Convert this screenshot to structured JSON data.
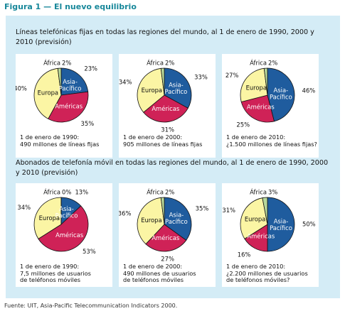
{
  "figure_title": "Figura 1 — El nuevo equilibrio",
  "sections": [
    "Líneas telefónicas fijas en todas las regiones del mundo, al 1 de enero de 1990, 2000 y 2010 (previsión)",
    "Abonados de telefonía móvil en todas las regiones del mundo, al 1 de enero de 1990, 2000 y 2010 (previsión)"
  ],
  "source": "Fuente: UIT, Asia-Pacific Telecommunication Indicators 2000.",
  "chart_data": [
    {
      "type": "pie",
      "categories": [
        "Asia-Pacífico",
        "Américas",
        "Europa",
        "África"
      ],
      "values": [
        23,
        35,
        40,
        2
      ],
      "value_labels": [
        "23%",
        "35%",
        "40%",
        "2%"
      ],
      "colors": [
        "#1f5c9e",
        "#cf2257",
        "#fbf5a4",
        "#b9d89a"
      ],
      "caption": [
        "1 de enero de 1990:",
        "490 millones de líneas fijas"
      ]
    },
    {
      "type": "pie",
      "categories": [
        "Asia-Pacífico",
        "Américas",
        "Europa",
        "África"
      ],
      "values": [
        33,
        31,
        34,
        2
      ],
      "value_labels": [
        "33%",
        "31%",
        "34%",
        "2%"
      ],
      "colors": [
        "#1f5c9e",
        "#cf2257",
        "#fbf5a4",
        "#b9d89a"
      ],
      "caption": [
        "1 de enero de 2000:",
        "905 millones de líneas fijas"
      ]
    },
    {
      "type": "pie",
      "categories": [
        "Asia-Pacífico",
        "Américas",
        "Europa",
        "África"
      ],
      "values": [
        46,
        25,
        27,
        2
      ],
      "value_labels": [
        "46%",
        "25%",
        "27%",
        "2%"
      ],
      "colors": [
        "#1f5c9e",
        "#cf2257",
        "#fbf5a4",
        "#b9d89a"
      ],
      "caption": [
        "1 de enero de 2010:",
        "¿1.500 millones de líneas fijas?"
      ]
    },
    {
      "type": "pie",
      "categories": [
        "Asia-Pacífico",
        "Américas",
        "Europa",
        "África"
      ],
      "values": [
        13,
        53,
        34,
        0
      ],
      "value_labels": [
        "13%",
        "53%",
        "34%",
        "0%"
      ],
      "colors": [
        "#1f5c9e",
        "#cf2257",
        "#fbf5a4",
        "#b9d89a"
      ],
      "caption": [
        "1 de enero de 1990:",
        "7,5 millones de usuarios",
        "de teléfonos móviles"
      ]
    },
    {
      "type": "pie",
      "categories": [
        "Asia-Pacífico",
        "Américas",
        "Europa",
        "África"
      ],
      "values": [
        35,
        27,
        36,
        2
      ],
      "value_labels": [
        "35%",
        "27%",
        "36%",
        "2%"
      ],
      "colors": [
        "#1f5c9e",
        "#cf2257",
        "#fbf5a4",
        "#b9d89a"
      ],
      "caption": [
        "1 de enero de 2000:",
        "490 millones de usuarios",
        "de teléfonos móviles"
      ]
    },
    {
      "type": "pie",
      "categories": [
        "Asia-Pacífico",
        "Américas",
        "Europa",
        "África"
      ],
      "values": [
        50,
        16,
        31,
        3
      ],
      "value_labels": [
        "50%",
        "16%",
        "31%",
        "3%"
      ],
      "colors": [
        "#1f5c9e",
        "#cf2257",
        "#fbf5a4",
        "#b9d89a"
      ],
      "caption": [
        "1 de enero de 2010:",
        "¿2.200 millones de usuarios",
        "de teléfonos móviles?"
      ]
    }
  ]
}
